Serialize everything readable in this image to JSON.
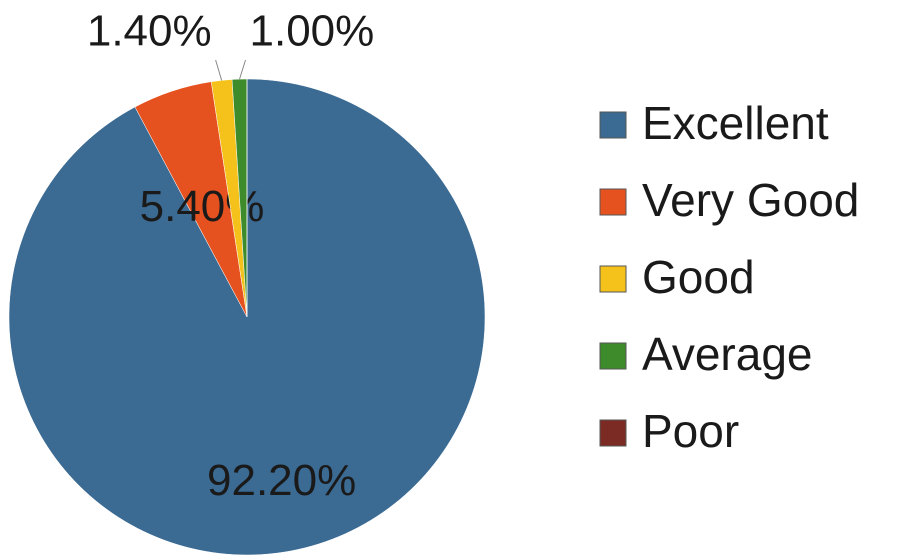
{
  "chart_data": {
    "type": "pie",
    "categories": [
      "Excellent",
      "Very Good",
      "Good",
      "Average",
      "Poor"
    ],
    "values": [
      92.2,
      5.4,
      1.4,
      1.0,
      0
    ],
    "value_labels": [
      "92.20%",
      "5.40%",
      "1.40%",
      "1.00%",
      null
    ],
    "colors": [
      "#3b6a93",
      "#e6521f",
      "#f4c21b",
      "#3d8b2b",
      "#7b2b24"
    ],
    "legend": "right"
  }
}
